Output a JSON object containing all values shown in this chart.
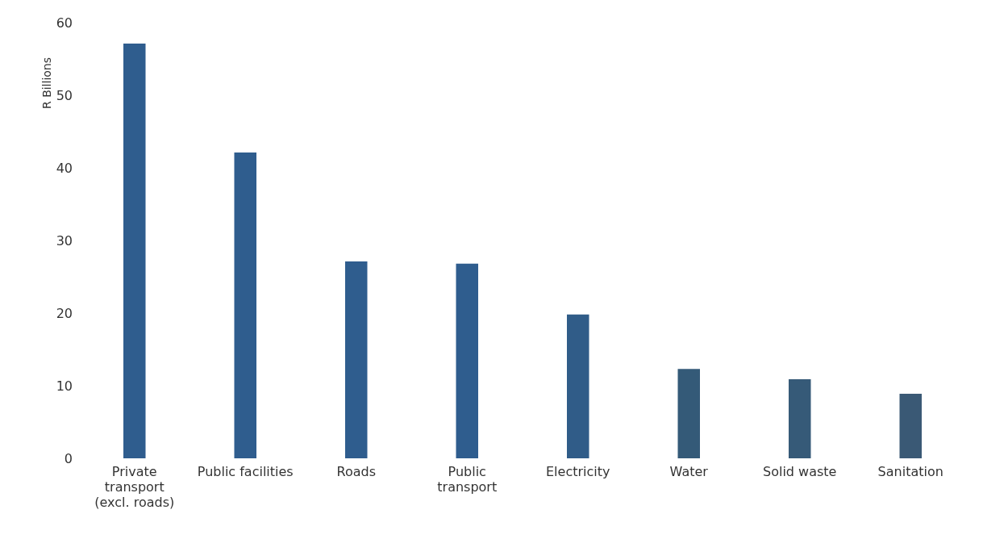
{
  "chart_data": {
    "type": "bar",
    "ylabel": "R Billions",
    "categories": [
      "Private\ntransport\n(excl. roads)",
      "Public facilities",
      "Roads",
      "Public\ntransport",
      "Electricity",
      "Water",
      "Solid waste",
      "Sanitation"
    ],
    "values": [
      57.1,
      42.1,
      27.1,
      26.8,
      19.8,
      12.3,
      10.9,
      8.9
    ],
    "colors": [
      "#2f5d8e",
      "#2f5d8e",
      "#2f5d8e",
      "#2f5d8e",
      "#305c88",
      "#345a78",
      "#365a78",
      "#3a5975"
    ],
    "ylim": [
      0,
      60
    ],
    "yticks": [
      0,
      10,
      20,
      30,
      40,
      50,
      60
    ],
    "grid": false,
    "legend": false
  }
}
